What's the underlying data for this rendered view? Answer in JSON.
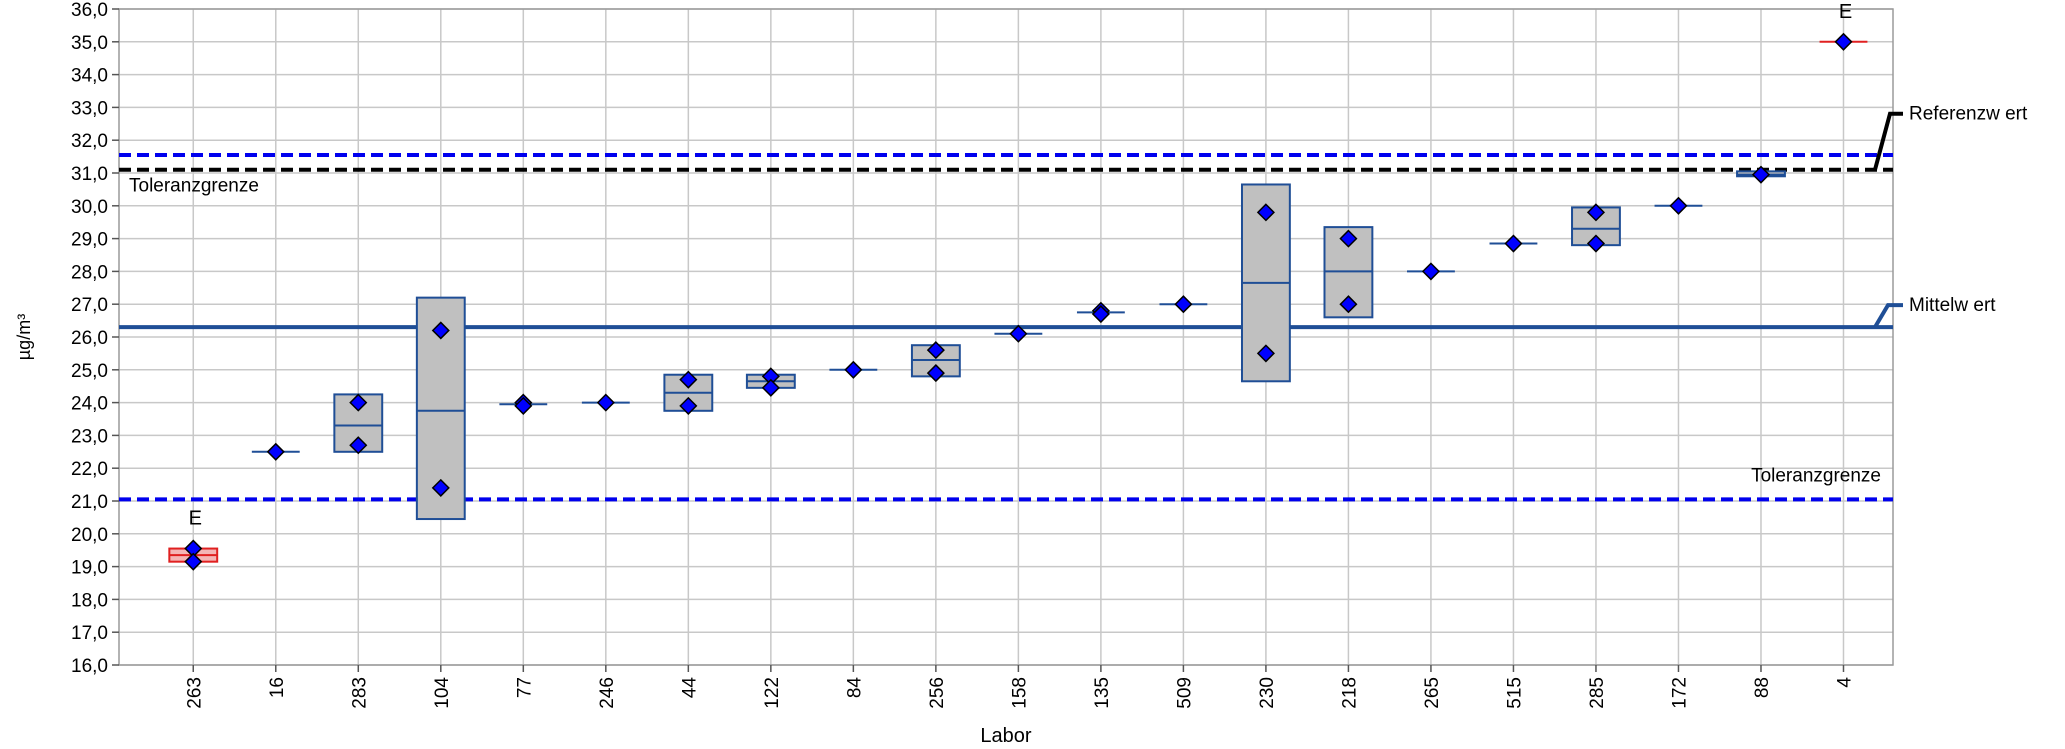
{
  "chart_data": {
    "type": "box",
    "xlabel": "Labor",
    "ylabel": "µg/m³",
    "ylim": [
      16.0,
      36.0
    ],
    "y_ticks": [
      "16,0",
      "17,0",
      "18,0",
      "19,0",
      "20,0",
      "21,0",
      "22,0",
      "23,0",
      "24,0",
      "25,0",
      "26,0",
      "27,0",
      "28,0",
      "29,0",
      "30,0",
      "31,0",
      "32,0",
      "33,0",
      "34,0",
      "35,0",
      "36,0"
    ],
    "grid": true,
    "categories": [
      "263",
      "16",
      "283",
      "104",
      "77",
      "246",
      "44",
      "122",
      "84",
      "256",
      "158",
      "135",
      "509",
      "230",
      "218",
      "265",
      "515",
      "285",
      "172",
      "88",
      "4"
    ],
    "labs": [
      {
        "lab": "263",
        "low": 19.15,
        "high": 19.55,
        "median": 19.35,
        "points": [
          19.55,
          19.15
        ],
        "flag": "E",
        "outlier": true
      },
      {
        "lab": "16",
        "low": 22.5,
        "high": 22.5,
        "median": 22.5,
        "points": [
          22.5
        ],
        "flag": "",
        "outlier": false
      },
      {
        "lab": "283",
        "low": 22.5,
        "high": 24.25,
        "median": 23.3,
        "points": [
          24.0,
          22.7
        ],
        "flag": "",
        "outlier": false
      },
      {
        "lab": "104",
        "low": 20.45,
        "high": 27.2,
        "median": 23.75,
        "points": [
          26.2,
          21.4
        ],
        "flag": "",
        "outlier": false
      },
      {
        "lab": "77",
        "low": 23.95,
        "high": 23.95,
        "median": 23.95,
        "points": [
          24.0,
          23.9
        ],
        "flag": "",
        "outlier": false
      },
      {
        "lab": "246",
        "low": 24.0,
        "high": 24.0,
        "median": 24.0,
        "points": [
          24.0
        ],
        "flag": "",
        "outlier": false
      },
      {
        "lab": "44",
        "low": 23.75,
        "high": 24.85,
        "median": 24.3,
        "points": [
          24.7,
          23.9
        ],
        "flag": "",
        "outlier": false
      },
      {
        "lab": "122",
        "low": 24.45,
        "high": 24.85,
        "median": 24.65,
        "points": [
          24.8,
          24.45
        ],
        "flag": "",
        "outlier": false
      },
      {
        "lab": "84",
        "low": 25.0,
        "high": 25.0,
        "median": 25.0,
        "points": [
          25.0
        ],
        "flag": "",
        "outlier": false
      },
      {
        "lab": "256",
        "low": 24.8,
        "high": 25.75,
        "median": 25.3,
        "points": [
          25.6,
          24.9
        ],
        "flag": "",
        "outlier": false
      },
      {
        "lab": "158",
        "low": 26.1,
        "high": 26.1,
        "median": 26.1,
        "points": [
          26.1
        ],
        "flag": "",
        "outlier": false
      },
      {
        "lab": "135",
        "low": 26.75,
        "high": 26.75,
        "median": 26.75,
        "points": [
          26.8,
          26.7
        ],
        "flag": "",
        "outlier": false
      },
      {
        "lab": "509",
        "low": 27.0,
        "high": 27.0,
        "median": 27.0,
        "points": [
          27.0
        ],
        "flag": "",
        "outlier": false
      },
      {
        "lab": "230",
        "low": 24.65,
        "high": 30.65,
        "median": 27.65,
        "points": [
          29.8,
          25.5
        ],
        "flag": "",
        "outlier": false
      },
      {
        "lab": "218",
        "low": 26.6,
        "high": 29.35,
        "median": 28.0,
        "points": [
          29.0,
          27.0
        ],
        "flag": "",
        "outlier": false
      },
      {
        "lab": "265",
        "low": 28.0,
        "high": 28.0,
        "median": 28.0,
        "points": [
          28.0
        ],
        "flag": "",
        "outlier": false
      },
      {
        "lab": "515",
        "low": 28.85,
        "high": 28.85,
        "median": 28.85,
        "points": [
          28.85
        ],
        "flag": "",
        "outlier": false
      },
      {
        "lab": "285",
        "low": 28.8,
        "high": 29.95,
        "median": 29.3,
        "points": [
          29.8,
          28.85
        ],
        "flag": "",
        "outlier": false
      },
      {
        "lab": "172",
        "low": 30.0,
        "high": 30.0,
        "median": 30.0,
        "points": [
          30.0
        ],
        "flag": "",
        "outlier": false
      },
      {
        "lab": "88",
        "low": 30.9,
        "high": 31.05,
        "median": 30.95,
        "points": [
          30.95
        ],
        "flag": "",
        "outlier": false
      },
      {
        "lab": "4",
        "low": 35.0,
        "high": 35.0,
        "median": 35.0,
        "points": [
          35.0
        ],
        "flag": "E",
        "outlier": true
      }
    ],
    "reference_lines": [
      {
        "name": "Mittelw ert",
        "value": 26.3,
        "style": "solid",
        "color": "#1f4e96"
      },
      {
        "name": "Referenzw ert",
        "value": 31.1,
        "style": "dashed",
        "color": "#000000"
      },
      {
        "name": "Toleranzgrenze",
        "value": 31.55,
        "style": "dashed",
        "color": "#0000ee"
      },
      {
        "name": "Toleranzgrenze",
        "value": 21.05,
        "style": "dashed",
        "color": "#0000ee"
      }
    ],
    "colors": {
      "box_fill": "#c0c0c0",
      "box_stroke": "#1f4e96",
      "outlier_fill": "#f4b6b6",
      "outlier_stroke": "#e02020",
      "point_fill": "#0000ff",
      "point_stroke": "#000000",
      "grid": "#c8c8c8",
      "mean_line": "#1f4e96",
      "tolerance_line": "#0000ee",
      "reference_line": "#000000"
    }
  }
}
